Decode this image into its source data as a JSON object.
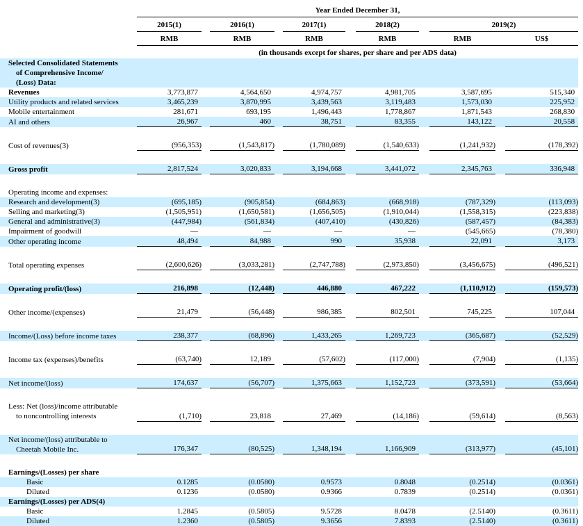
{
  "colors": {
    "row_highlight": "#cceeff",
    "text": "#000000",
    "rule": "#000000"
  },
  "table": {
    "header": {
      "title": "Year Ended December 31,",
      "note": "(in thousands except for shares, per share and per ADS data)",
      "year_groups": [
        {
          "label": "2015(1)"
        },
        {
          "label": "2016(1)"
        },
        {
          "label": "2017(1)"
        },
        {
          "label": "2018(2)"
        },
        {
          "label": "2019(2)"
        }
      ],
      "currency_labels": [
        "RMB",
        "RMB",
        "RMB",
        "RMB",
        "RMB",
        "US$"
      ]
    },
    "rows": [
      {
        "label": "Selected Consolidated Statements\nof Comprehensive Income/\n(Loss) Data:",
        "bold": true,
        "shaded": true,
        "values": [
          "",
          "",
          "",
          "",
          "",
          ""
        ]
      },
      {
        "label": "Revenues",
        "bold": true,
        "values": [
          "3,773,877",
          "4,564,650",
          "4,974,757",
          "4,981,705",
          "3,587,695",
          "515,340"
        ]
      },
      {
        "label": "Utility products and related services",
        "shaded": true,
        "values": [
          "3,465,239",
          "3,870,995",
          "3,439,563",
          "3,119,483",
          "1,573,030",
          "225,952"
        ]
      },
      {
        "label": "Mobile entertainment",
        "values": [
          "281,671",
          "693,195",
          "1,496,443",
          "1,778,867",
          "1,871,543",
          "268,830"
        ]
      },
      {
        "label": "AI and others",
        "shaded": true,
        "underline": true,
        "values": [
          "26,967",
          "460",
          "38,751",
          "83,355",
          "143,122",
          "20,558"
        ]
      },
      {
        "kind": "spacer"
      },
      {
        "label": "Cost of revenues(3)",
        "underline": true,
        "values": [
          "(956,353)",
          "(1,543,817)",
          "(1,780,089)",
          "(1,540,633)",
          "(1,241,932)",
          "(178,392)"
        ]
      },
      {
        "kind": "spacer"
      },
      {
        "label": "Gross profit",
        "bold": true,
        "shaded": true,
        "underline": true,
        "values": [
          "2,817,524",
          "3,020,833",
          "3,194,668",
          "3,441,072",
          "2,345,763",
          "336,948"
        ]
      },
      {
        "kind": "spacer"
      },
      {
        "label": "Operating income and expenses:",
        "values": [
          "",
          "",
          "",
          "",
          "",
          ""
        ]
      },
      {
        "label": "Research and development(3)",
        "shaded": true,
        "values": [
          "(695,185)",
          "(905,854)",
          "(684,863)",
          "(668,918)",
          "(787,329)",
          "(113,093)"
        ]
      },
      {
        "label": "Selling and marketing(3)",
        "values": [
          "(1,505,951)",
          "(1,650,581)",
          "(1,656,505)",
          "(1,910,044)",
          "(1,558,315)",
          "(223,838)"
        ]
      },
      {
        "label": "General and administrative(3)",
        "shaded": true,
        "values": [
          "(447,984)",
          "(561,834)",
          "(407,410)",
          "(430,826)",
          "(587,457)",
          "(84,383)"
        ]
      },
      {
        "label": "Impairment of goodwill",
        "values": [
          "—",
          "—",
          "—",
          "—",
          "(545,665)",
          "(78,380)"
        ]
      },
      {
        "label": "Other operating income",
        "shaded": true,
        "underline": true,
        "values": [
          "48,494",
          "84,988",
          "990",
          "35,938",
          "22,091",
          "3,173"
        ]
      },
      {
        "kind": "spacer"
      },
      {
        "label": "Total operating expenses",
        "underline": true,
        "values": [
          "(2,600,626)",
          "(3,033,281)",
          "(2,747,788)",
          "(2,973,850)",
          "(3,456,675)",
          "(496,521)"
        ]
      },
      {
        "kind": "spacer"
      },
      {
        "label": "Operating profit/(loss)",
        "bold": true,
        "bold_values": true,
        "shaded": true,
        "underline": true,
        "values": [
          "216,898",
          "(12,448)",
          "446,880",
          "467,222",
          "(1,110,912)",
          "(159,573)"
        ]
      },
      {
        "kind": "spacer"
      },
      {
        "label": "Other income/(expenses)",
        "underline": true,
        "values": [
          "21,479",
          "(56,448)",
          "986,385",
          "802,501",
          "745,225",
          "107,044"
        ]
      },
      {
        "kind": "spacer"
      },
      {
        "label": "Income/(Loss) before income taxes",
        "shaded": true,
        "underline": true,
        "values": [
          "238,377",
          "(68,896)",
          "1,433,265",
          "1,269,723",
          "(365,687)",
          "(52,529)"
        ]
      },
      {
        "kind": "spacer"
      },
      {
        "label": "Income tax (expenses)/benefits",
        "underline": true,
        "values": [
          "(63,740)",
          "12,189",
          "(57,602)",
          "(117,000)",
          "(7,904)",
          "(1,135)"
        ]
      },
      {
        "kind": "spacer"
      },
      {
        "label": "Net income/(loss)",
        "shaded": true,
        "underline": true,
        "values": [
          "174,637",
          "(56,707)",
          "1,375,663",
          "1,152,723",
          "(373,591)",
          "(53,664)"
        ]
      },
      {
        "kind": "spacer"
      },
      {
        "label": "Less: Net (loss)/income attributable\nto noncontrolling interests",
        "underline": true,
        "values": [
          "(1,710)",
          "23,818",
          "27,469",
          "(14,186)",
          "(59,614)",
          "(8,563)"
        ]
      },
      {
        "kind": "spacer"
      },
      {
        "label": "Net income/(loss) attributable to\nCheetah Mobile Inc.",
        "shaded": true,
        "underline": true,
        "values": [
          "176,347",
          "(80,525)",
          "1,348,194",
          "1,166,909",
          "(313,977)",
          "(45,101)"
        ]
      },
      {
        "kind": "spacer"
      },
      {
        "label": "Earnings/(Losses) per share",
        "bold": true,
        "values": [
          "",
          "",
          "",
          "",
          "",
          ""
        ]
      },
      {
        "label": "Basic",
        "indent": true,
        "shaded": true,
        "values": [
          "0.1285",
          "(0.0580)",
          "0.9573",
          "0.8048",
          "(0.2514)",
          "(0.0361)"
        ]
      },
      {
        "label": "Diluted",
        "indent": true,
        "values": [
          "0.1236",
          "(0.0580)",
          "0.9366",
          "0.7839",
          "(0.2514)",
          "(0.0361)"
        ]
      },
      {
        "label": "Earnings/(Losses) per ADS(4)",
        "bold": true,
        "shaded": true,
        "values": [
          "",
          "",
          "",
          "",
          "",
          ""
        ]
      },
      {
        "label": "Basic",
        "indent": true,
        "values": [
          "1.2845",
          "(0.5805)",
          "9.5728",
          "8.0478",
          "(2.5140)",
          "(0.3611)"
        ]
      },
      {
        "label": "Diluted",
        "indent": true,
        "shaded": true,
        "values": [
          "1.2360",
          "(0.5805)",
          "9.3656",
          "7.8393",
          "(2.5140)",
          "(0.3611)"
        ]
      }
    ]
  }
}
